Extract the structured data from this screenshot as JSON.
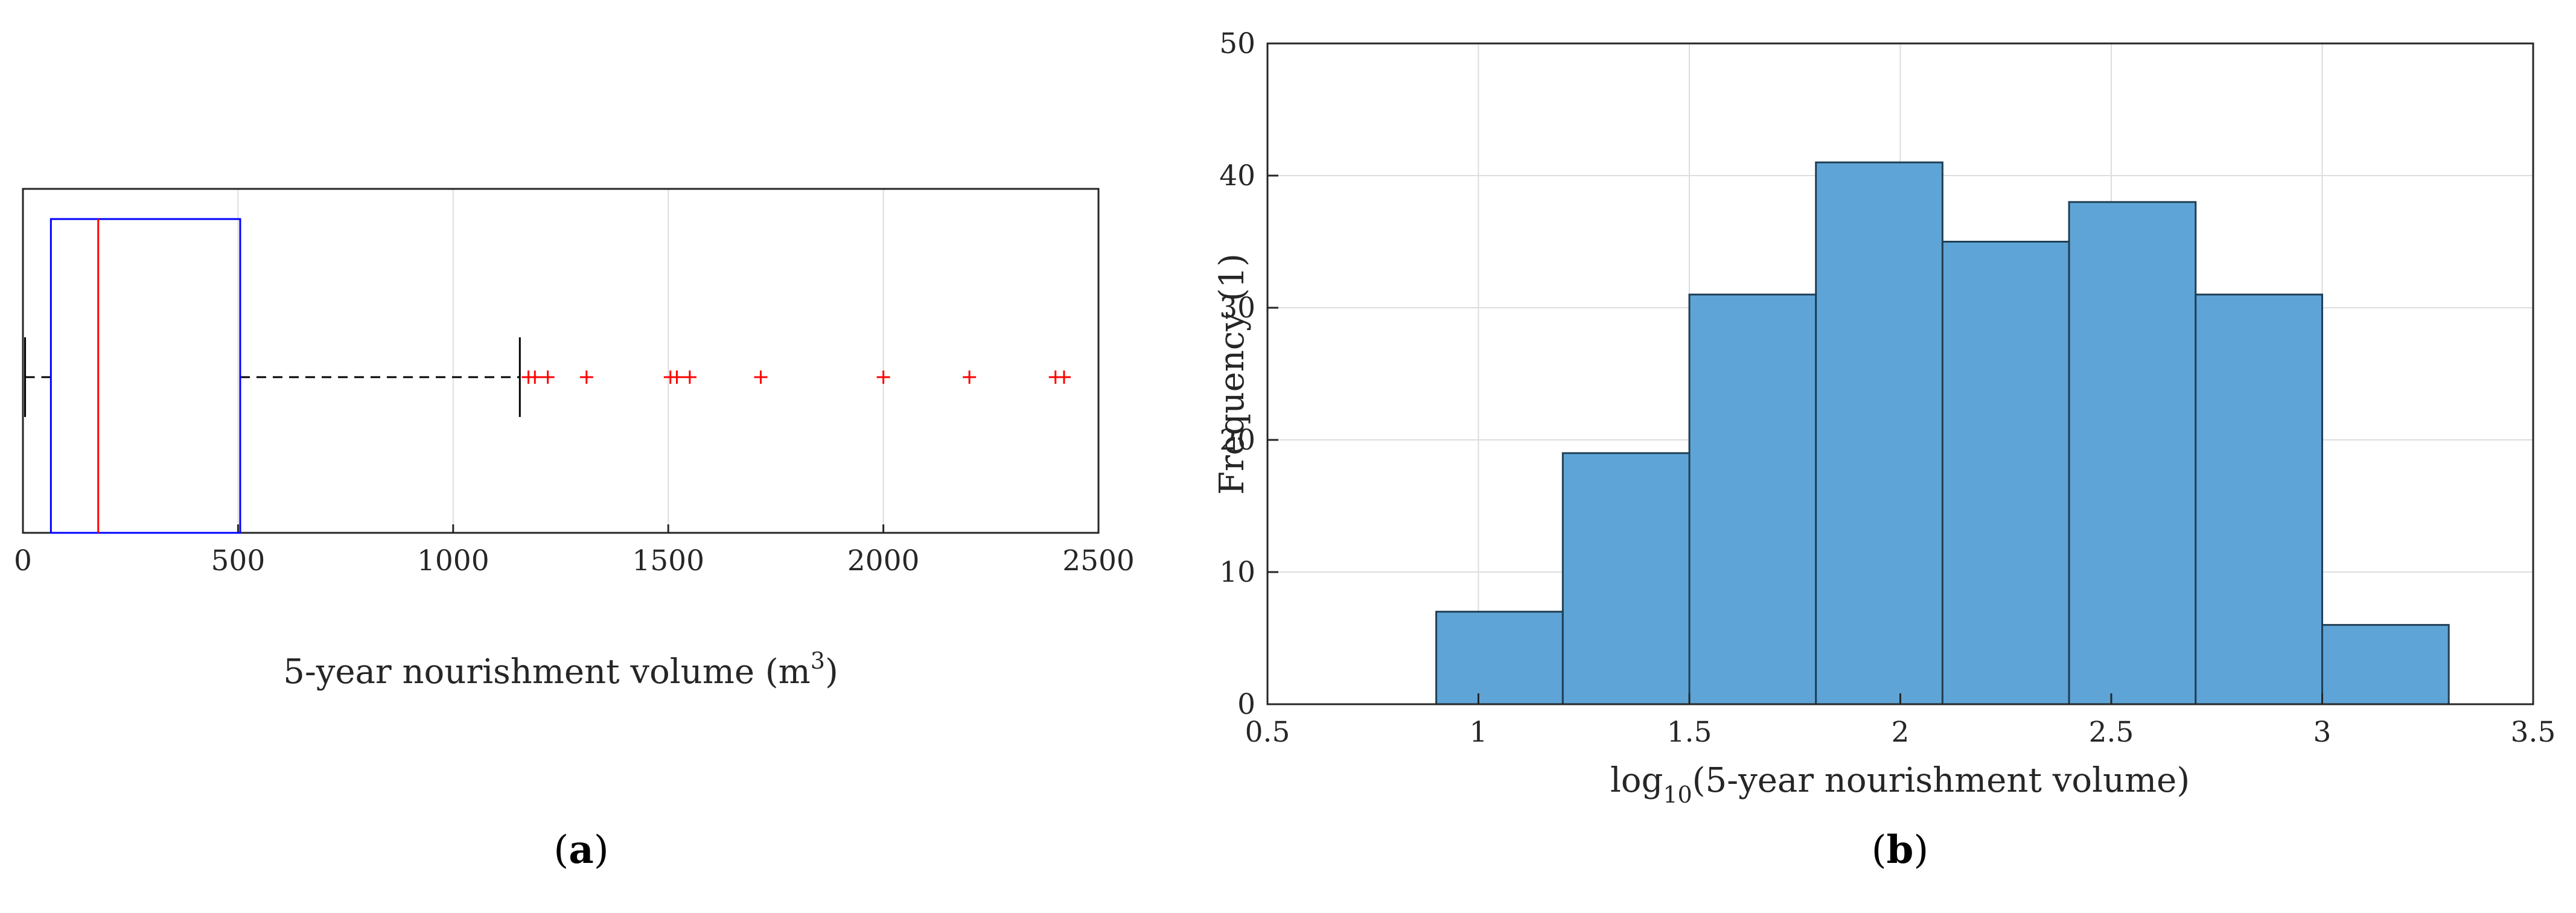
{
  "colors": {
    "box": "#0000ff",
    "median": "#ff0000",
    "outlier": "#ff0000",
    "whisker": "#000000",
    "bar_fill": "#5fa4d6",
    "bar_edge": "#1f3f55",
    "grid": "#dddddd",
    "axis": "#262626"
  },
  "chart_data": [
    {
      "type": "box",
      "panel_label_open": "(",
      "panel_label_letter": "a",
      "panel_label_close": ")",
      "xlabel": "5-year nourishment volume (m",
      "xlabel_sup": "3",
      "xlabel_end": ")",
      "xlim": [
        0,
        2500
      ],
      "xticks": [
        0,
        500,
        1000,
        1500,
        2000,
        2500
      ],
      "xtick_labels": [
        "0",
        "500",
        "1000",
        "1500",
        "2000",
        "2500"
      ],
      "grid": true,
      "stats": {
        "min": 5,
        "q1": 65,
        "median": 175,
        "q3": 505,
        "whisker_high": 1155
      },
      "outliers": [
        1175,
        1190,
        1220,
        1310,
        1505,
        1520,
        1550,
        1715,
        2000,
        2200,
        2400,
        2420
      ]
    },
    {
      "type": "bar",
      "panel_label_open": "(",
      "panel_label_letter": "b",
      "panel_label_close": ")",
      "xlabel_pre": "log",
      "xlabel_sub": "10",
      "xlabel_post": "(5-year nourishment volume)",
      "ylabel": "Frequency (1)",
      "xlim": [
        0.5,
        3.5
      ],
      "ylim": [
        0,
        50
      ],
      "xticks": [
        0.5,
        1,
        1.5,
        2,
        2.5,
        3,
        3.5
      ],
      "xtick_labels": [
        "0.5",
        "1",
        "1.5",
        "2",
        "2.5",
        "3",
        "3.5"
      ],
      "yticks": [
        0,
        10,
        20,
        30,
        40,
        50
      ],
      "ytick_labels": [
        "0",
        "10",
        "20",
        "30",
        "40",
        "50"
      ],
      "grid": true,
      "bin_edges": [
        0.9,
        1.2,
        1.5,
        1.8,
        2.1,
        2.4,
        2.7,
        3.0,
        3.3
      ],
      "values": [
        7,
        19,
        31,
        41,
        35,
        38,
        31,
        6
      ]
    }
  ]
}
